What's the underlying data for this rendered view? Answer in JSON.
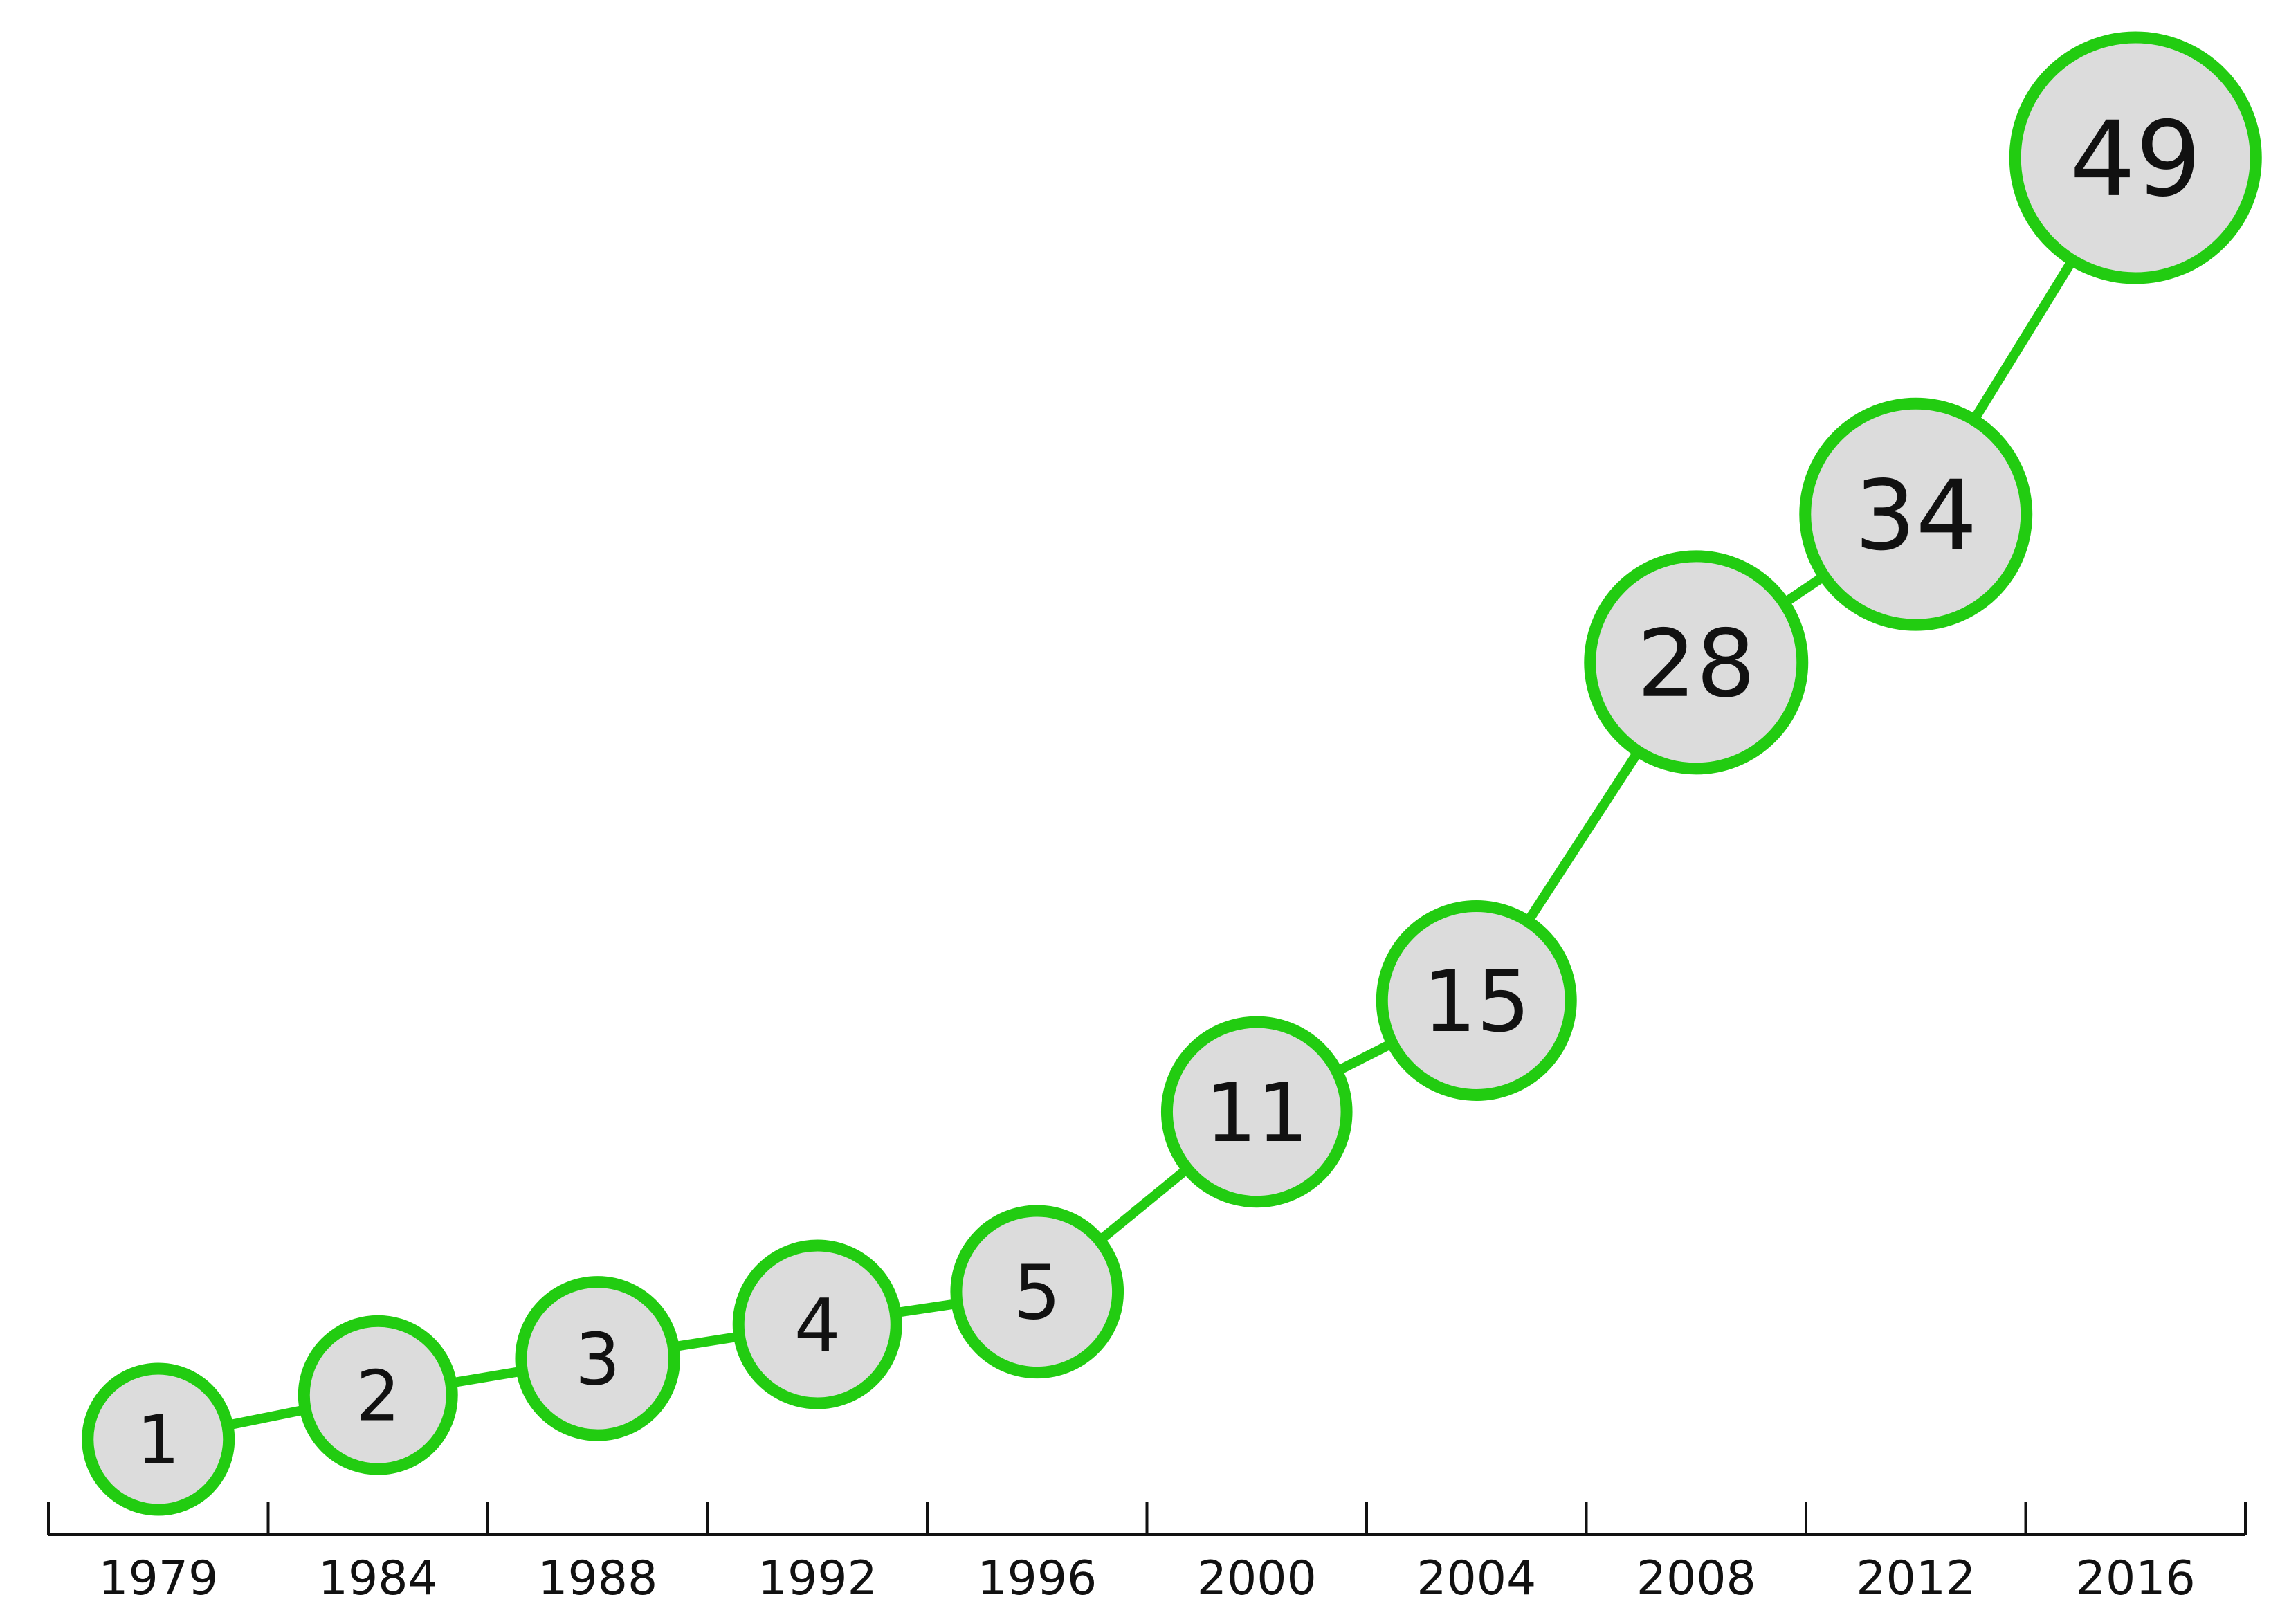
{
  "chart_data": {
    "type": "line",
    "categories": [
      "1979",
      "1984",
      "1988",
      "1992",
      "1996",
      "2000",
      "2004",
      "2008",
      "2012",
      "2016"
    ],
    "values": [
      1,
      2,
      3,
      4,
      5,
      11,
      15,
      28,
      34,
      49
    ],
    "title": "",
    "xlabel": "",
    "ylabel": "",
    "data_labels": true,
    "grid": false,
    "legend": "none"
  },
  "colors": {
    "line": "#22cc11",
    "marker_fill": "#dcdcdc",
    "marker_stroke": "#22cc11",
    "axis": "#111111",
    "text": "#111111"
  }
}
